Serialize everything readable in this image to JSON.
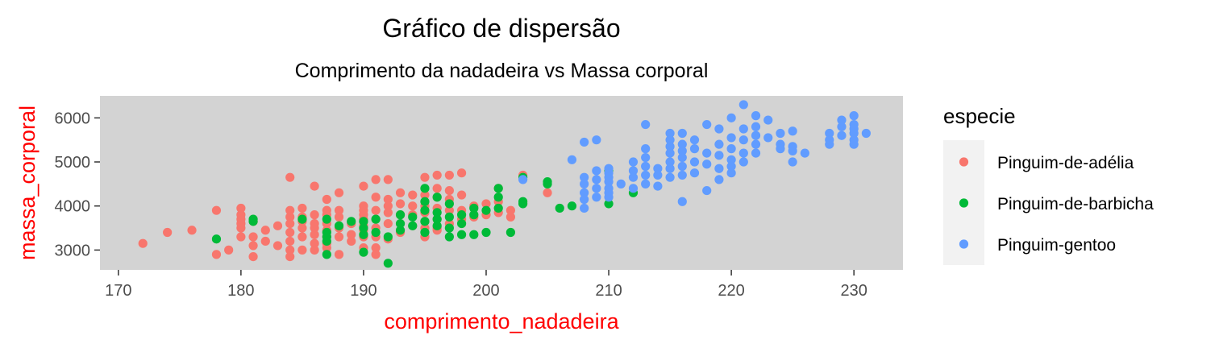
{
  "chart_data": {
    "type": "scatter",
    "title": "Gráfico de dispersão",
    "subtitle": "Comprimento da nadadeira vs Massa corporal",
    "xlabel": "comprimento_nadadeira",
    "ylabel": "massa_corporal",
    "axis_title_color": "#ff0000",
    "panel_color": "#d3d3d3",
    "xlim": [
      168.5,
      234
    ],
    "ylim": [
      2550,
      6500
    ],
    "x_ticks": [
      170,
      180,
      190,
      200,
      210,
      220,
      230
    ],
    "y_ticks": [
      3000,
      4000,
      5000,
      6000
    ],
    "grid": false,
    "legend": {
      "title": "especie",
      "position": "right"
    },
    "series": [
      {
        "name": "Pinguim-de-adélia",
        "color": "#f8766d",
        "points": [
          [
            172,
            3150
          ],
          [
            174,
            3400
          ],
          [
            176,
            3450
          ],
          [
            178,
            3900
          ],
          [
            178,
            2900
          ],
          [
            179,
            3000
          ],
          [
            180,
            3950
          ],
          [
            180,
            3800
          ],
          [
            180,
            3700
          ],
          [
            180,
            3600
          ],
          [
            180,
            3500
          ],
          [
            180,
            3300
          ],
          [
            181,
            3650
          ],
          [
            181,
            3300
          ],
          [
            181,
            3100
          ],
          [
            181,
            2850
          ],
          [
            182,
            3450
          ],
          [
            182,
            3200
          ],
          [
            183,
            3550
          ],
          [
            183,
            3100
          ],
          [
            184,
            4650
          ],
          [
            184,
            3900
          ],
          [
            184,
            3750
          ],
          [
            184,
            3600
          ],
          [
            184,
            3400
          ],
          [
            184,
            3200
          ],
          [
            184,
            3000
          ],
          [
            184,
            2850
          ],
          [
            185,
            3950
          ],
          [
            185,
            3750
          ],
          [
            185,
            3650
          ],
          [
            185,
            3500
          ],
          [
            185,
            3300
          ],
          [
            185,
            3000
          ],
          [
            186,
            4450
          ],
          [
            186,
            3800
          ],
          [
            186,
            3600
          ],
          [
            186,
            3500
          ],
          [
            186,
            3350
          ],
          [
            186,
            3150
          ],
          [
            186,
            3000
          ],
          [
            187,
            4150
          ],
          [
            187,
            3900
          ],
          [
            187,
            3800
          ],
          [
            187,
            3600
          ],
          [
            187,
            3450
          ],
          [
            187,
            3300
          ],
          [
            187,
            3150
          ],
          [
            187,
            3050
          ],
          [
            188,
            4300
          ],
          [
            188,
            3900
          ],
          [
            188,
            3750
          ],
          [
            188,
            3500
          ],
          [
            188,
            3300
          ],
          [
            188,
            2900
          ],
          [
            189,
            3600
          ],
          [
            189,
            3350
          ],
          [
            189,
            3200
          ],
          [
            190,
            4450
          ],
          [
            190,
            4000
          ],
          [
            190,
            3900
          ],
          [
            190,
            3800
          ],
          [
            190,
            3700
          ],
          [
            190,
            3550
          ],
          [
            190,
            3450
          ],
          [
            190,
            3300
          ],
          [
            190,
            3050
          ],
          [
            191,
            4600
          ],
          [
            191,
            4200
          ],
          [
            191,
            3900
          ],
          [
            191,
            3700
          ],
          [
            191,
            3500
          ],
          [
            191,
            3300
          ],
          [
            191,
            3050
          ],
          [
            191,
            2900
          ],
          [
            192,
            4600
          ],
          [
            192,
            4150
          ],
          [
            192,
            4000
          ],
          [
            192,
            3850
          ],
          [
            192,
            3600
          ],
          [
            192,
            3250
          ],
          [
            193,
            4300
          ],
          [
            193,
            4050
          ],
          [
            193,
            3800
          ],
          [
            193,
            3400
          ],
          [
            194,
            4250
          ],
          [
            194,
            4000
          ],
          [
            194,
            3800
          ],
          [
            194,
            3550
          ],
          [
            195,
            4650
          ],
          [
            195,
            4250
          ],
          [
            195,
            4000
          ],
          [
            195,
            3850
          ],
          [
            195,
            3650
          ],
          [
            195,
            3500
          ],
          [
            195,
            3300
          ],
          [
            196,
            4700
          ],
          [
            196,
            4400
          ],
          [
            196,
            4200
          ],
          [
            196,
            3950
          ],
          [
            196,
            3700
          ],
          [
            196,
            3500
          ],
          [
            196,
            3450
          ],
          [
            197,
            4700
          ],
          [
            197,
            4350
          ],
          [
            197,
            4150
          ],
          [
            197,
            3900
          ],
          [
            197,
            3600
          ],
          [
            198,
            4750
          ],
          [
            198,
            4250
          ],
          [
            198,
            3900
          ],
          [
            198,
            3700
          ],
          [
            199,
            4000
          ],
          [
            199,
            3750
          ],
          [
            200,
            4050
          ],
          [
            200,
            3800
          ],
          [
            201,
            4400
          ],
          [
            201,
            4100
          ],
          [
            201,
            3850
          ],
          [
            202,
            3900
          ],
          [
            202,
            3750
          ],
          [
            203,
            4700
          ],
          [
            205,
            4300
          ]
        ]
      },
      {
        "name": "Pinguim-de-barbicha",
        "color": "#00ba38",
        "points": [
          [
            178,
            3250
          ],
          [
            181,
            3700
          ],
          [
            181,
            3650
          ],
          [
            185,
            3700
          ],
          [
            187,
            3700
          ],
          [
            187,
            3400
          ],
          [
            187,
            3300
          ],
          [
            187,
            3200
          ],
          [
            187,
            2900
          ],
          [
            188,
            3550
          ],
          [
            189,
            3650
          ],
          [
            190,
            3650
          ],
          [
            190,
            3500
          ],
          [
            190,
            3350
          ],
          [
            190,
            2950
          ],
          [
            191,
            3700
          ],
          [
            191,
            3400
          ],
          [
            192,
            3300
          ],
          [
            192,
            2700
          ],
          [
            193,
            3800
          ],
          [
            193,
            3600
          ],
          [
            193,
            3450
          ],
          [
            194,
            3750
          ],
          [
            194,
            3550
          ],
          [
            195,
            4400
          ],
          [
            195,
            4100
          ],
          [
            195,
            3900
          ],
          [
            195,
            3650
          ],
          [
            195,
            3400
          ],
          [
            196,
            4200
          ],
          [
            196,
            3850
          ],
          [
            196,
            3700
          ],
          [
            196,
            3550
          ],
          [
            197,
            4050
          ],
          [
            197,
            3750
          ],
          [
            197,
            3500
          ],
          [
            197,
            3300
          ],
          [
            198,
            3800
          ],
          [
            198,
            3600
          ],
          [
            198,
            3350
          ],
          [
            199,
            3950
          ],
          [
            199,
            3800
          ],
          [
            199,
            3350
          ],
          [
            200,
            3900
          ],
          [
            200,
            3400
          ],
          [
            201,
            4400
          ],
          [
            201,
            4200
          ],
          [
            201,
            3950
          ],
          [
            202,
            3400
          ],
          [
            203,
            4100
          ],
          [
            203,
            4050
          ],
          [
            203,
            4650
          ],
          [
            205,
            4550
          ],
          [
            205,
            4500
          ],
          [
            206,
            3950
          ],
          [
            207,
            4000
          ],
          [
            210,
            4800
          ],
          [
            210,
            4050
          ],
          [
            212,
            4300
          ]
        ]
      },
      {
        "name": "Pinguim-gentoo",
        "color": "#619cff",
        "points": [
          [
            203,
            4600
          ],
          [
            207,
            5050
          ],
          [
            208,
            4650
          ],
          [
            208,
            4500
          ],
          [
            208,
            4300
          ],
          [
            208,
            4150
          ],
          [
            208,
            3950
          ],
          [
            208,
            5450
          ],
          [
            209,
            5500
          ],
          [
            209,
            4800
          ],
          [
            209,
            4600
          ],
          [
            209,
            4400
          ],
          [
            209,
            4200
          ],
          [
            210,
            4850
          ],
          [
            210,
            4750
          ],
          [
            210,
            4650
          ],
          [
            210,
            4550
          ],
          [
            210,
            4400
          ],
          [
            210,
            4300
          ],
          [
            210,
            4200
          ],
          [
            211,
            4500
          ],
          [
            212,
            5000
          ],
          [
            212,
            4800
          ],
          [
            212,
            4650
          ],
          [
            212,
            4400
          ],
          [
            213,
            5850
          ],
          [
            213,
            5300
          ],
          [
            213,
            5100
          ],
          [
            213,
            4900
          ],
          [
            213,
            4700
          ],
          [
            213,
            4500
          ],
          [
            214,
            4850
          ],
          [
            214,
            4700
          ],
          [
            214,
            4450
          ],
          [
            215,
            5650
          ],
          [
            215,
            5500
          ],
          [
            215,
            5350
          ],
          [
            215,
            5200
          ],
          [
            215,
            5000
          ],
          [
            215,
            4850
          ],
          [
            215,
            4650
          ],
          [
            216,
            5650
          ],
          [
            216,
            5400
          ],
          [
            216,
            5250
          ],
          [
            216,
            5100
          ],
          [
            216,
            4900
          ],
          [
            216,
            4700
          ],
          [
            216,
            4100
          ],
          [
            217,
            5500
          ],
          [
            217,
            5300
          ],
          [
            217,
            5000
          ],
          [
            217,
            4750
          ],
          [
            218,
            5850
          ],
          [
            218,
            5200
          ],
          [
            218,
            4950
          ],
          [
            218,
            4350
          ],
          [
            219,
            5750
          ],
          [
            219,
            5400
          ],
          [
            219,
            5150
          ],
          [
            219,
            4850
          ],
          [
            219,
            4600
          ],
          [
            220,
            6000
          ],
          [
            220,
            5550
          ],
          [
            220,
            5300
          ],
          [
            220,
            5050
          ],
          [
            220,
            4900
          ],
          [
            220,
            4750
          ],
          [
            221,
            6300
          ],
          [
            221,
            5750
          ],
          [
            221,
            5500
          ],
          [
            221,
            5200
          ],
          [
            221,
            5000
          ],
          [
            222,
            6050
          ],
          [
            222,
            5800
          ],
          [
            222,
            5600
          ],
          [
            222,
            5400
          ],
          [
            222,
            5200
          ],
          [
            223,
            5950
          ],
          [
            223,
            5550
          ],
          [
            224,
            5650
          ],
          [
            224,
            5400
          ],
          [
            224,
            5300
          ],
          [
            225,
            5700
          ],
          [
            225,
            5350
          ],
          [
            225,
            5000
          ],
          [
            225,
            5250
          ],
          [
            226,
            5200
          ],
          [
            228,
            5650
          ],
          [
            228,
            5500
          ],
          [
            228,
            5400
          ],
          [
            229,
            5950
          ],
          [
            229,
            5800
          ],
          [
            229,
            5600
          ],
          [
            230,
            6050
          ],
          [
            230,
            5850
          ],
          [
            230,
            5750
          ],
          [
            230,
            5650
          ],
          [
            230,
            5500
          ],
          [
            230,
            5400
          ],
          [
            231,
            5650
          ]
        ]
      }
    ]
  }
}
